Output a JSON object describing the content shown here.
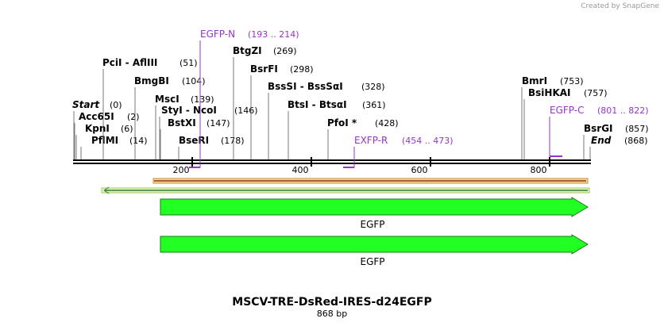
{
  "header": {
    "credit": "Created by SnapGene"
  },
  "map": {
    "title": "MSCV-TRE-DsRed-IRES-d24EGFP",
    "length": "868 bp",
    "scale_labels": [
      "200",
      "400",
      "600",
      "800"
    ],
    "enzymes": [
      {
        "name": "Start",
        "site": "(0)"
      },
      {
        "name": "Acc65I",
        "site": "(2)"
      },
      {
        "name": "KpnI",
        "site": "(6)"
      },
      {
        "name": "PflMI",
        "site": "(14)"
      },
      {
        "name": "PciI - AflIII",
        "site": "(51)"
      },
      {
        "name": "BmgBI",
        "site": "(104)"
      },
      {
        "name": "MscI",
        "site": "(139)"
      },
      {
        "name": "StyI - NcoI",
        "site": "(146)"
      },
      {
        "name": "BstXI",
        "site": "(147)"
      },
      {
        "name": "BseRI",
        "site": "(178)"
      },
      {
        "name": "BtgZI",
        "site": "(269)"
      },
      {
        "name": "BsrFI",
        "site": "(298)"
      },
      {
        "name": "BssSI - BssSαI",
        "site": "(328)"
      },
      {
        "name": "BtsI - BtsαI",
        "site": "(361)"
      },
      {
        "name": "PfoI *",
        "site": "(428)"
      },
      {
        "name": "BmrI",
        "site": "(753)"
      },
      {
        "name": "BsiHKAI",
        "site": "(757)"
      },
      {
        "name": "BsrGI",
        "site": "(857)"
      },
      {
        "name": "End",
        "site": "(868)"
      }
    ],
    "primers": [
      {
        "name": "EGFP-N",
        "range": "(193 .. 214)"
      },
      {
        "name": "EXFP-R",
        "range": "(454 .. 473)"
      },
      {
        "name": "EGFP-C",
        "range": "(801 .. 822)"
      }
    ],
    "features": [
      {
        "label": "EGFP"
      },
      {
        "label": "EGFP"
      }
    ]
  }
}
